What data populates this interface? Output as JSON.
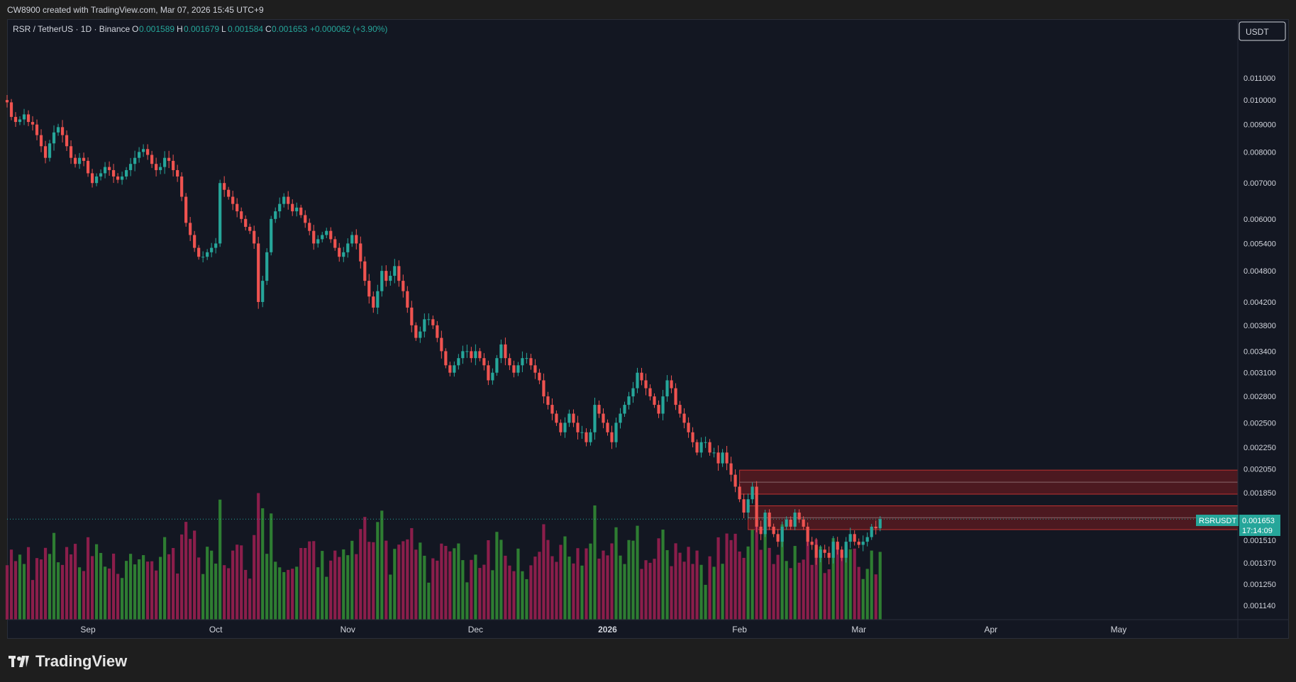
{
  "header": {
    "caption": "CW8900 created with TradingView.com, Mar 07, 2026 15:45 UTC+9"
  },
  "legend": {
    "symbol": "RSR / TetherUS · 1D · Binance",
    "o_label": "O",
    "o_value": "0.001589",
    "h_label": "H",
    "h_value": "0.001679",
    "l_label": "L",
    "l_value": "0.001584",
    "c_label": "C",
    "c_value": "0.001653",
    "change": "+0.000062 (+3.90%)"
  },
  "currency_button": "USDT",
  "price_badge": {
    "symbol": "RSRUSDT",
    "price": "0.001653",
    "countdown": "17:14:09"
  },
  "brand": "TradingView",
  "colors": {
    "bg": "#131722",
    "up": "#26a69a",
    "down": "#ef5350",
    "vol_up": "#2e7d32",
    "vol_down": "#8b1e4b",
    "zone": "#b71c1c",
    "text": "#d1d4dc"
  },
  "chart_data": {
    "type": "candlestick",
    "title": "",
    "xlabel": "",
    "ylabel": "",
    "y_scale": "log",
    "ylim": [
      0.00108,
      0.0128
    ],
    "y_ticks": [
      "0.011000",
      "0.010000",
      "0.009000",
      "0.008000",
      "0.007000",
      "0.006000",
      "0.005400",
      "0.004800",
      "0.004200",
      "0.003800",
      "0.003400",
      "0.003100",
      "0.002800",
      "0.002500",
      "0.002250",
      "0.002050",
      "0.001850",
      "0.001510",
      "0.001370",
      "0.001250",
      "0.001140"
    ],
    "x_ticks": [
      "Sep",
      "Oct",
      "Nov",
      "Dec",
      "2026",
      "Feb",
      "Mar",
      "Apr",
      "May"
    ],
    "x_range": [
      "2025-08-13",
      "2026-05-29"
    ],
    "month_starts": [
      "2025-09-01",
      "2025-10-01",
      "2025-11-01",
      "2025-12-01",
      "2026-01-01",
      "2026-02-01",
      "2026-03-01",
      "2026-04-01",
      "2026-05-01"
    ],
    "series_start": "2025-08-13",
    "closes": [
      0.0099,
      0.0093,
      0.0091,
      0.0092,
      0.0094,
      0.0091,
      0.009,
      0.0086,
      0.0082,
      0.0078,
      0.0083,
      0.0087,
      0.0089,
      0.0086,
      0.0082,
      0.0078,
      0.0076,
      0.0078,
      0.0077,
      0.0073,
      0.007,
      0.0072,
      0.0073,
      0.0075,
      0.0074,
      0.0072,
      0.0071,
      0.0072,
      0.0074,
      0.0076,
      0.0078,
      0.008,
      0.0081,
      0.0079,
      0.0076,
      0.0074,
      0.0075,
      0.0078,
      0.0077,
      0.0074,
      0.0072,
      0.0066,
      0.0059,
      0.0056,
      0.0053,
      0.0051,
      0.0051,
      0.0052,
      0.0053,
      0.0054,
      0.007,
      0.0068,
      0.0066,
      0.0064,
      0.0062,
      0.006,
      0.0058,
      0.0057,
      0.0054,
      0.0042,
      0.0046,
      0.0052,
      0.006,
      0.0062,
      0.0064,
      0.0066,
      0.0064,
      0.0062,
      0.0063,
      0.0061,
      0.0059,
      0.0057,
      0.0054,
      0.0055,
      0.0056,
      0.0057,
      0.0055,
      0.0053,
      0.0051,
      0.0052,
      0.0054,
      0.0056,
      0.0054,
      0.005,
      0.0046,
      0.0043,
      0.0041,
      0.0044,
      0.0048,
      0.0046,
      0.0047,
      0.0049,
      0.0046,
      0.0044,
      0.0041,
      0.0038,
      0.0036,
      0.0037,
      0.0039,
      0.0039,
      0.0038,
      0.0036,
      0.0034,
      0.0032,
      0.0031,
      0.0032,
      0.0033,
      0.0034,
      0.0034,
      0.0033,
      0.0034,
      0.0033,
      0.0032,
      0.003,
      0.0031,
      0.0033,
      0.0035,
      0.0033,
      0.0032,
      0.0031,
      0.0032,
      0.0033,
      0.0033,
      0.0032,
      0.0031,
      0.003,
      0.0028,
      0.0027,
      0.0026,
      0.0025,
      0.0024,
      0.0025,
      0.0026,
      0.0025,
      0.0024,
      0.0024,
      0.0023,
      0.0024,
      0.0027,
      0.0026,
      0.0025,
      0.0024,
      0.0023,
      0.0025,
      0.0026,
      0.0027,
      0.0028,
      0.0029,
      0.0031,
      0.003,
      0.0029,
      0.0028,
      0.0027,
      0.0026,
      0.0028,
      0.003,
      0.0029,
      0.0027,
      0.0026,
      0.0025,
      0.0024,
      0.0023,
      0.0022,
      0.0023,
      0.0023,
      0.0022,
      0.0022,
      0.0021,
      0.0022,
      0.0021,
      0.002,
      0.0019,
      0.0018,
      0.0017,
      0.0018,
      0.0019,
      0.0016,
      0.00155,
      0.0017,
      0.0016,
      0.00155,
      0.0015,
      0.0016,
      0.00165,
      0.0016,
      0.0017,
      0.00165,
      0.0016,
      0.0015,
      0.00148,
      0.0014,
      0.00145,
      0.00143,
      0.0014,
      0.0015,
      0.00145,
      0.0014,
      0.0015,
      0.00155,
      0.0015,
      0.00148,
      0.0015,
      0.00153,
      0.0016,
      0.001589,
      0.001653
    ],
    "annotations": [
      {
        "type": "zone",
        "from": 0.00184,
        "to": 0.00204,
        "start": "2026-02-01"
      },
      {
        "type": "zone",
        "from": 0.00158,
        "to": 0.00175,
        "start": "2026-02-03"
      },
      {
        "type": "price_line",
        "value": 0.001653,
        "label": "RSRUSDT"
      }
    ]
  }
}
